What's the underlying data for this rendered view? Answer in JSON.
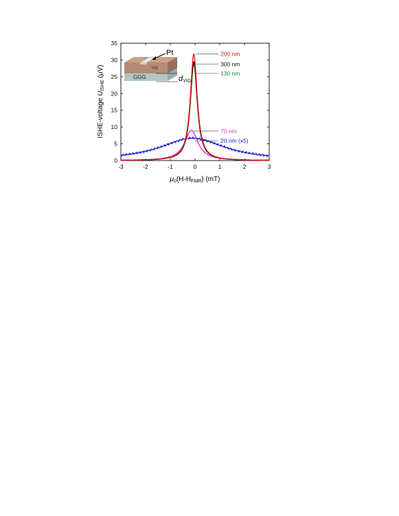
{
  "chart_data": {
    "type": "line",
    "title": "",
    "xlabel": {
      "prefix": "μ",
      "prefix_sub": "0",
      "body": "(H-H",
      "body_sub": "FMR",
      "suffix": ") (mT)"
    },
    "ylabel": {
      "prefix": "ISHE-voltage ",
      "var": "U",
      "var_sub": "ISHE",
      "suffix": " (μV)"
    },
    "xlim": [
      -3,
      3
    ],
    "ylim": [
      0,
      35
    ],
    "xticks": [
      "-3",
      "-2",
      "-1",
      "0",
      "1",
      "2",
      "3"
    ],
    "yticks": [
      "0",
      "5",
      "10",
      "15",
      "20",
      "25",
      "30",
      "35"
    ],
    "grid": false,
    "series": [
      {
        "name": "200 nm",
        "color": "#e8141b",
        "center": -0.05,
        "peak": 31.8,
        "hwhm": 0.17,
        "offset": 0.0,
        "label_y": 31.8
      },
      {
        "name": "300 nm",
        "color": "#111111",
        "center": -0.05,
        "peak": 29.5,
        "hwhm": 0.17,
        "offset": 0.0,
        "label_y": 28.8
      },
      {
        "name": "130 nm",
        "color": "#1e8f3a",
        "center": -0.05,
        "peak": 28.8,
        "hwhm": 0.18,
        "offset": 0.0,
        "label_y": 26.0
      },
      {
        "name": "70 nm",
        "color": "#e033d6",
        "center": -0.15,
        "peak": 9.0,
        "hwhm": 0.33,
        "offset": 0.0,
        "label_y": 8.8
      },
      {
        "name": "20 nm (x5)",
        "color": "#1a1ad6",
        "center": -0.1,
        "peak": 6.7,
        "hwhm": 1.6,
        "offset": 0.0,
        "label_y": 5.9
      }
    ],
    "inset": {
      "label_pt": "Pt",
      "label_ggg": "GGG",
      "label_yig": "YIG",
      "label_d": "d",
      "label_d_sub": "YIG"
    }
  }
}
